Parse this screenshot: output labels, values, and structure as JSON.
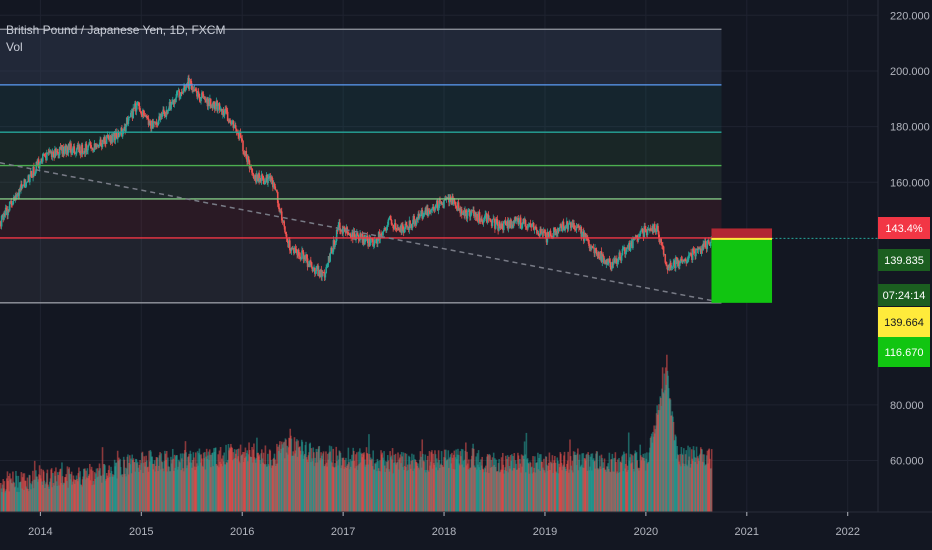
{
  "header": {
    "symbol_line": "British Pound / Japanese Yen, 1D, FXCM",
    "indicator": "Vol"
  },
  "chart_data": {
    "type": "line",
    "title": "British Pound / Japanese Yen, 1D, FXCM",
    "x_range": [
      2013.6,
      2022.3
    ],
    "y_range": [
      41.5,
      225.5
    ],
    "y_ticks": [
      {
        "value": 220,
        "label": "220.000"
      },
      {
        "value": 200,
        "label": "200.000"
      },
      {
        "value": 180,
        "label": "180.000"
      },
      {
        "value": 160,
        "label": "160.000"
      },
      {
        "value": 80,
        "label": "80.000"
      },
      {
        "value": 60,
        "label": "60.000"
      }
    ],
    "x_ticks": [
      {
        "value": 2014,
        "label": "2014"
      },
      {
        "value": 2015,
        "label": "2015"
      },
      {
        "value": 2016,
        "label": "2016"
      },
      {
        "value": 2017,
        "label": "2017"
      },
      {
        "value": 2018,
        "label": "2018"
      },
      {
        "value": 2019,
        "label": "2019"
      },
      {
        "value": 2020,
        "label": "2020"
      },
      {
        "value": 2021,
        "label": "2021"
      },
      {
        "value": 2022,
        "label": "2022"
      }
    ],
    "price_series": [
      [
        2013.6,
        146
      ],
      [
        2013.8,
        158
      ],
      [
        2014.0,
        168
      ],
      [
        2014.2,
        172
      ],
      [
        2014.4,
        172
      ],
      [
        2014.6,
        174
      ],
      [
        2014.8,
        178
      ],
      [
        2014.95,
        188
      ],
      [
        2015.1,
        180
      ],
      [
        2015.25,
        186
      ],
      [
        2015.45,
        196
      ],
      [
        2015.6,
        190
      ],
      [
        2015.8,
        186
      ],
      [
        2015.95,
        178
      ],
      [
        2016.1,
        162
      ],
      [
        2016.3,
        160
      ],
      [
        2016.45,
        138
      ],
      [
        2016.6,
        133
      ],
      [
        2016.8,
        126
      ],
      [
        2016.95,
        144
      ],
      [
        2017.1,
        141
      ],
      [
        2017.3,
        138
      ],
      [
        2017.45,
        146
      ],
      [
        2017.6,
        143
      ],
      [
        2017.75,
        148
      ],
      [
        2017.9,
        151
      ],
      [
        2018.05,
        154
      ],
      [
        2018.2,
        149
      ],
      [
        2018.4,
        147
      ],
      [
        2018.55,
        144
      ],
      [
        2018.7,
        146
      ],
      [
        2018.85,
        144
      ],
      [
        2019.0,
        140
      ],
      [
        2019.15,
        144
      ],
      [
        2019.3,
        144
      ],
      [
        2019.5,
        135
      ],
      [
        2019.65,
        130
      ],
      [
        2019.8,
        136
      ],
      [
        2019.95,
        142
      ],
      [
        2020.1,
        144
      ],
      [
        2020.2,
        130
      ],
      [
        2020.35,
        132
      ],
      [
        2020.5,
        135
      ],
      [
        2020.65,
        140
      ]
    ],
    "volume_series": [
      [
        2013.6,
        52
      ],
      [
        2013.9,
        53
      ],
      [
        2014.2,
        54
      ],
      [
        2014.5,
        55
      ],
      [
        2014.8,
        58
      ],
      [
        2015.1,
        60
      ],
      [
        2015.4,
        60
      ],
      [
        2015.7,
        61
      ],
      [
        2016.0,
        63
      ],
      [
        2016.3,
        61
      ],
      [
        2016.45,
        66
      ],
      [
        2016.7,
        62
      ],
      [
        2017.0,
        61
      ],
      [
        2017.3,
        60
      ],
      [
        2017.6,
        59
      ],
      [
        2017.9,
        60
      ],
      [
        2018.2,
        61
      ],
      [
        2018.5,
        59
      ],
      [
        2018.8,
        59
      ],
      [
        2019.1,
        59
      ],
      [
        2019.4,
        60
      ],
      [
        2019.7,
        59
      ],
      [
        2020.0,
        60
      ],
      [
        2020.2,
        92
      ],
      [
        2020.3,
        62
      ],
      [
        2020.5,
        61
      ],
      [
        2020.65,
        61
      ]
    ],
    "horizontal_levels": [
      {
        "value": 215,
        "color": "#9598a1"
      },
      {
        "value": 195,
        "color": "#5b9cf6"
      },
      {
        "value": 178,
        "color": "#26a69a"
      },
      {
        "value": 166,
        "color": "#4caf50"
      },
      {
        "value": 154,
        "color": "#81c784"
      },
      {
        "value": 140,
        "color": "#f23645"
      },
      {
        "value": 116.67,
        "color": "#9598a1"
      }
    ],
    "trendline": {
      "from": [
        2013.6,
        167
      ],
      "to": [
        2020.65,
        117.5
      ],
      "color": "#787b86"
    },
    "position": {
      "x_start": 2020.65,
      "x_end": 2021.25,
      "entry": 139.664,
      "stop": 143.4,
      "target": 116.67
    },
    "current_price": 139.835,
    "labels": {
      "stop_pct": "143.4%",
      "price": "139.835",
      "countdown": "07:24:14",
      "entry": "139.664",
      "target": "116.670"
    },
    "colors": {
      "background": "#131722",
      "up": "#26a69a",
      "down": "#ef5350",
      "stop_zone": "#b22833",
      "target_zone": "#11c511",
      "entry_line": "#ffeb3b",
      "axis_text": "#b2b5be"
    }
  }
}
